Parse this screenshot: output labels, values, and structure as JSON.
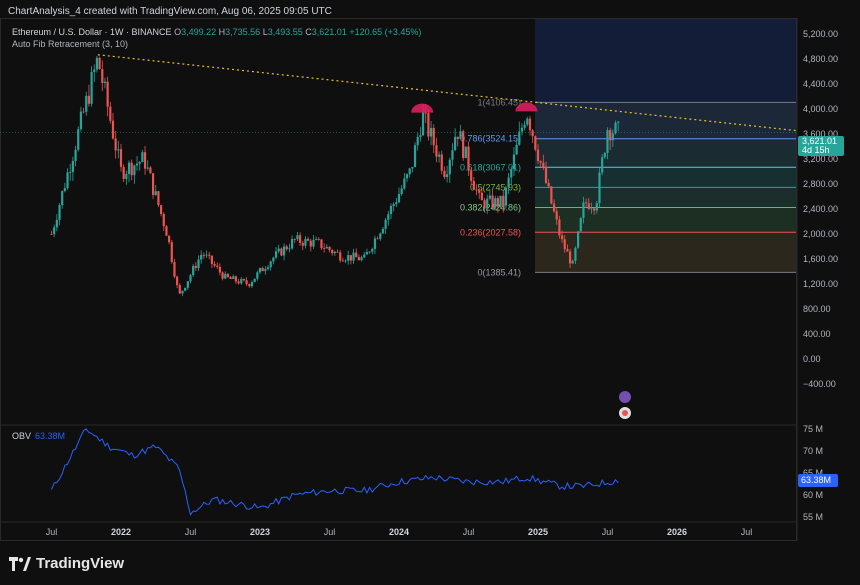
{
  "top_meta": "ChartAnalysis_4 created with TradingView.com, Aug 06, 2025 09:05 UTC",
  "legend": {
    "symbol": "Ethereum / U.S. Dollar · 1W · BINANCE",
    "open_label": "O",
    "open": "3,499.22",
    "high_label": "H",
    "high": "3,735.56",
    "low_label": "L",
    "low": "3,493.55",
    "close_label": "C",
    "close": "3,621.01",
    "change": "+120.65 (+3.45%)",
    "indicator": "Auto Fib Retracement (3, 10)"
  },
  "obv_legend": {
    "name": "OBV",
    "value": "63.38M"
  },
  "price_tag": {
    "price": "3,621.01",
    "countdown": "4d 15h"
  },
  "obv_tag": "63.38M",
  "brand": "TradingView",
  "colors": {
    "up": "#26a69a",
    "down": "#ef5350",
    "obv": "#2962ff",
    "trendline": "#e8c02a",
    "background": "#0f0f0f"
  },
  "chart_data": {
    "type": "candlestick",
    "title": "Ethereum / U.S. Dollar · 1W · BINANCE",
    "x_ticks": [
      "Jul",
      "2022",
      "Jul",
      "2023",
      "Jul",
      "2024",
      "Jul",
      "2025",
      "Jul",
      "2026",
      "Jul"
    ],
    "y_ticks": [
      "5,200.00",
      "4,800.00",
      "4,400.00",
      "4,000.00",
      "3,600.00",
      "3,200.00",
      "2,800.00",
      "2,400.00",
      "2,000.00",
      "1,600.00",
      "1,200.00",
      "800.00",
      "400.00",
      "0.00",
      "−400.00"
    ],
    "ylim": [
      -500,
      5400
    ],
    "price_path": [
      [
        "2021-07",
        2000
      ],
      [
        "2021-09",
        3400
      ],
      [
        "2021-11",
        4800
      ],
      [
        "2022-01",
        3000
      ],
      [
        "2022-03",
        3200
      ],
      [
        "2022-05",
        2000
      ],
      [
        "2022-06",
        1000
      ],
      [
        "2022-08",
        1700
      ],
      [
        "2022-10",
        1300
      ],
      [
        "2022-12",
        1200
      ],
      [
        "2023-02",
        1600
      ],
      [
        "2023-04",
        1900
      ],
      [
        "2023-06",
        1850
      ],
      [
        "2023-08",
        1650
      ],
      [
        "2023-10",
        1600
      ],
      [
        "2023-12",
        2300
      ],
      [
        "2024-02",
        3000
      ],
      [
        "2024-03",
        3900
      ],
      [
        "2024-05",
        3000
      ],
      [
        "2024-06",
        3700
      ],
      [
        "2024-08",
        2500
      ],
      [
        "2024-10",
        2500
      ],
      [
        "2024-12",
        4000
      ],
      [
        "2025-01",
        3300
      ],
      [
        "2025-02",
        2600
      ],
      [
        "2025-03",
        1900
      ],
      [
        "2025-04",
        1500
      ],
      [
        "2025-05",
        2500
      ],
      [
        "2025-06",
        2500
      ],
      [
        "2025-07",
        3700
      ],
      [
        "2025-08",
        3621
      ]
    ],
    "fib_levels": [
      {
        "label": "1(4106.45)",
        "value": 4106.45
      },
      {
        "label": "0.786(3524.15)",
        "value": 3524.15
      },
      {
        "label": "0.618(3067.01)",
        "value": 3067.01
      },
      {
        "label": "0.5(2745.93)",
        "value": 2745.93
      },
      {
        "label": "0.382(2424.86)",
        "value": 2424.86
      },
      {
        "label": "0.236(2027.58)",
        "value": 2027.58
      },
      {
        "label": "0(1385.41)",
        "value": 1385.41
      }
    ],
    "trendline": {
      "from": [
        "2021-11",
        4868
      ],
      "to": [
        "2026-09",
        3700
      ]
    },
    "obv": {
      "label": "OBV",
      "last": "63.38M",
      "y_ticks": [
        "75 M",
        "70 M",
        "65 M",
        "60 M",
        "55 M"
      ],
      "ylim": [
        53,
        77
      ],
      "path": [
        [
          "2021-07",
          61
        ],
        [
          "2021-10",
          75
        ],
        [
          "2021-12",
          71
        ],
        [
          "2022-02",
          69
        ],
        [
          "2022-04",
          71
        ],
        [
          "2022-06",
          66
        ],
        [
          "2022-07",
          56
        ],
        [
          "2022-09",
          59
        ],
        [
          "2022-11",
          58
        ],
        [
          "2023-01",
          57
        ],
        [
          "2023-04",
          60
        ],
        [
          "2023-07",
          61
        ],
        [
          "2023-10",
          61
        ],
        [
          "2024-01",
          63
        ],
        [
          "2024-04",
          64
        ],
        [
          "2024-07",
          63
        ],
        [
          "2024-10",
          63
        ],
        [
          "2024-12",
          64
        ],
        [
          "2025-03",
          62
        ],
        [
          "2025-05",
          62
        ],
        [
          "2025-08",
          63.38
        ]
      ]
    }
  }
}
